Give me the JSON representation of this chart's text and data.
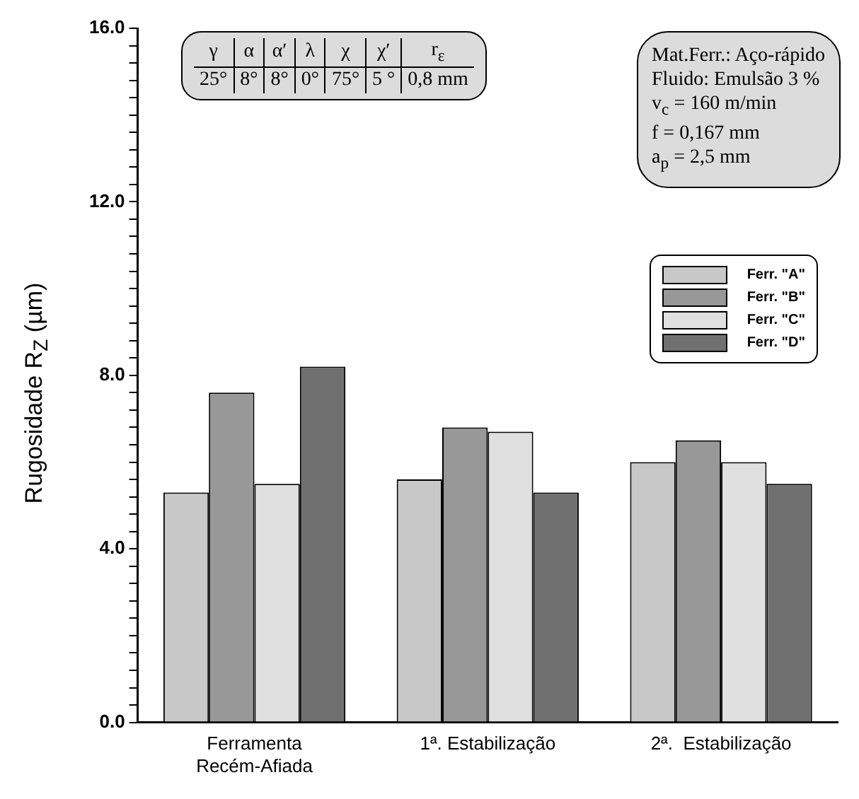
{
  "chart_data": {
    "type": "bar",
    "ylabel": "Rugosidade R$_{Z}$ (µm)",
    "categories": [
      "Ferramenta\nRecém-Afiada",
      "1ª. Estabilização",
      "2ª.  Estabilização"
    ],
    "series": [
      {
        "name": "Ferr. \"A\"",
        "color": "#c8c8c8",
        "values": [
          5.3,
          5.6,
          6.0
        ]
      },
      {
        "name": "Ferr. \"B\"",
        "color": "#989898",
        "values": [
          7.6,
          6.8,
          6.5
        ]
      },
      {
        "name": "Ferr. \"C\"",
        "color": "#e0e0e0",
        "values": [
          5.5,
          6.7,
          6.0
        ]
      },
      {
        "name": "Ferr. \"D\"",
        "color": "#707070",
        "values": [
          8.2,
          5.3,
          5.5
        ]
      }
    ],
    "ylim": [
      0,
      16
    ],
    "yticks": [
      {
        "value": 0,
        "label": "0.0"
      },
      {
        "value": 0.4,
        "label": null
      },
      {
        "value": 0.8,
        "label": null
      },
      {
        "value": 1.2,
        "label": null
      },
      {
        "value": 1.6,
        "label": null
      },
      {
        "value": 2,
        "label": null
      },
      {
        "value": 2.4,
        "label": null
      },
      {
        "value": 2.8,
        "label": null
      },
      {
        "value": 3.2,
        "label": null
      },
      {
        "value": 3.6,
        "label": null
      },
      {
        "value": 4,
        "label": "4.0"
      },
      {
        "value": 4.4,
        "label": null
      },
      {
        "value": 4.8,
        "label": null
      },
      {
        "value": 5.2,
        "label": null
      },
      {
        "value": 5.6,
        "label": null
      },
      {
        "value": 6,
        "label": null
      },
      {
        "value": 6.4,
        "label": null
      },
      {
        "value": 6.8,
        "label": null
      },
      {
        "value": 7.2,
        "label": null
      },
      {
        "value": 7.6,
        "label": null
      },
      {
        "value": 8,
        "label": "8.0"
      },
      {
        "value": 8.4,
        "label": null
      },
      {
        "value": 8.8,
        "label": null
      },
      {
        "value": 9.2,
        "label": null
      },
      {
        "value": 9.6,
        "label": null
      },
      {
        "value": 10,
        "label": null
      },
      {
        "value": 10.4,
        "label": null
      },
      {
        "value": 10.8,
        "label": null
      },
      {
        "value": 11.2,
        "label": null
      },
      {
        "value": 11.6,
        "label": null
      },
      {
        "value": 12,
        "label": "12.0"
      },
      {
        "value": 12.4,
        "label": null
      },
      {
        "value": 12.8,
        "label": null
      },
      {
        "value": 13.2,
        "label": null
      },
      {
        "value": 13.6,
        "label": null
      },
      {
        "value": 14,
        "label": null
      },
      {
        "value": 14.4,
        "label": null
      },
      {
        "value": 14.8,
        "label": null
      },
      {
        "value": 15.2,
        "label": null
      },
      {
        "value": 15.6,
        "label": null
      },
      {
        "value": 16,
        "label": "16.0"
      }
    ],
    "grid": false,
    "legend": "top right",
    "annotations": [
      "γ",
      "α",
      "α′",
      "λ",
      "χ",
      "χ′",
      "r$_{ε}$",
      "25°",
      "8°",
      "8°",
      "0°",
      "75°",
      "5 °",
      "0,8 mm",
      "Mat.Ferr.: Aço-rápido",
      "Fluido: Emulsão 3 %",
      "v$_{c}$ = 160 m/min",
      "f = 0,167 mm",
      "a$_{p}$ = 2,5 mm"
    ]
  }
}
